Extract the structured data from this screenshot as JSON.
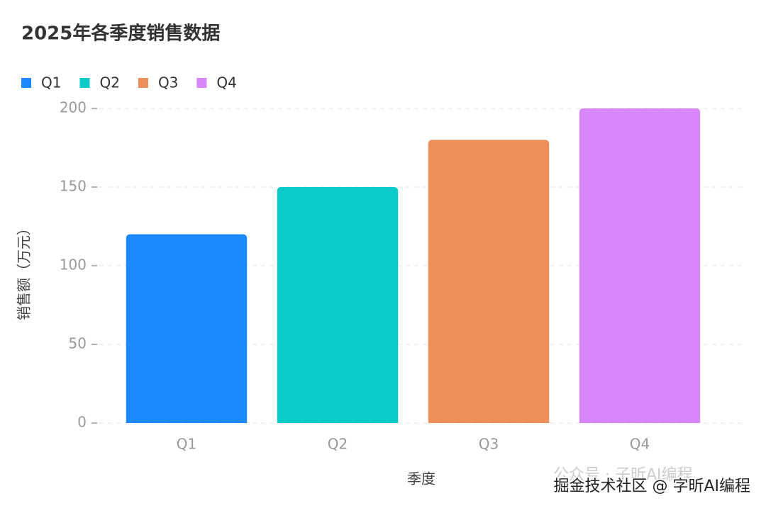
{
  "chart_data": {
    "type": "bar",
    "title": "2025年各季度销售数据",
    "categories": [
      "Q1",
      "Q2",
      "Q3",
      "Q4"
    ],
    "values": [
      120,
      150,
      180,
      200
    ],
    "colors": [
      "#1e88ff",
      "#0bcbc9",
      "#ee8f59",
      "#d787fb"
    ],
    "xlabel": "季度",
    "ylabel": "销售额（万元）",
    "ylim": [
      0,
      200
    ],
    "yticks": [
      0,
      50,
      100,
      150,
      200
    ],
    "grid": true,
    "legend": "top-left",
    "watermark": "掘金技术社区 @ 字昕AI编程",
    "watermark_faint": "公众号 · 子昕AI编程"
  }
}
